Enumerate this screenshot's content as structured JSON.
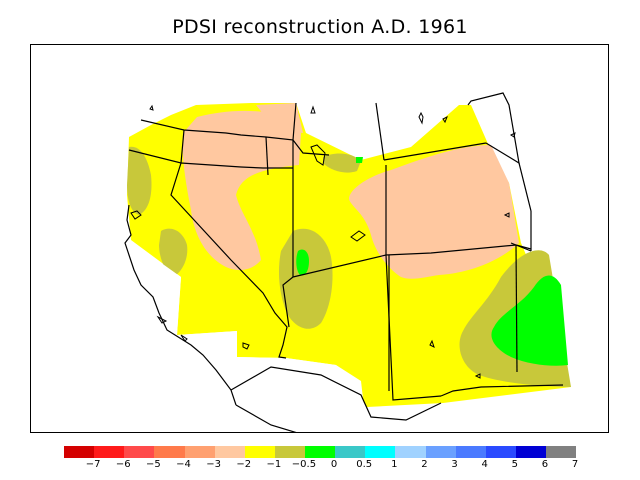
{
  "title": "PDSI reconstruction A.D. 1961",
  "legend": {
    "labels": [
      "−7",
      "−6",
      "−5",
      "−4",
      "−3",
      "−2",
      "−1",
      "−0.5",
      "0",
      "0.5",
      "1",
      "2",
      "3",
      "4",
      "5",
      "6",
      "7"
    ],
    "colors": [
      "#d40000",
      "#ff1a1a",
      "#ff4a4a",
      "#ff7a4a",
      "#ffa070",
      "#ffc8a0",
      "#ffff00",
      "#c8c83a",
      "#00ff00",
      "#3ac8c8",
      "#00ffff",
      "#a0d2ff",
      "#6aa0ff",
      "#4a7aff",
      "#2a4aff",
      "#0000d4",
      "#808080"
    ]
  },
  "map": {
    "region": "Western United States",
    "colors": {
      "yellow": "#ffff00",
      "peach": "#ffc8a0",
      "olive": "#c8c83a",
      "green": "#00ff00",
      "lines": "#000000"
    }
  }
}
